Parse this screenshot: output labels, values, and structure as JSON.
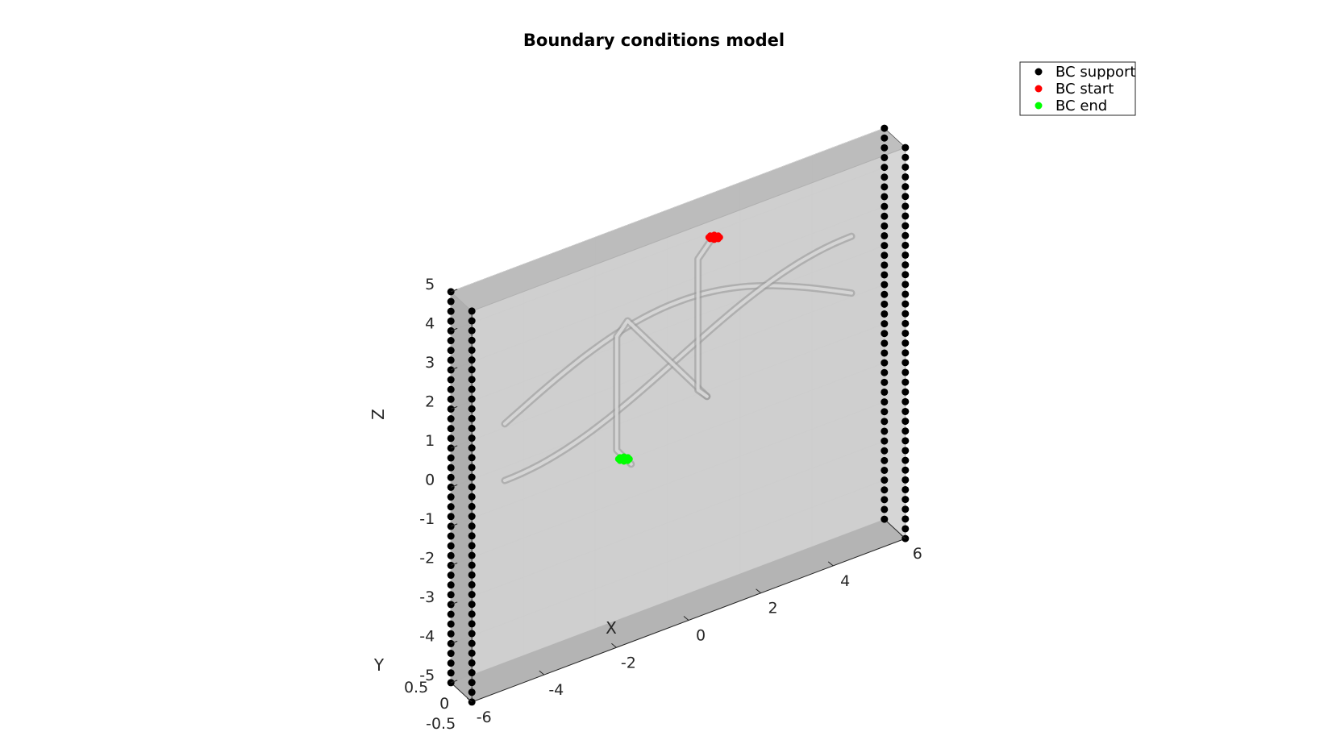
{
  "chart_data": {
    "type": "scatter3d",
    "title": "Boundary conditions model",
    "xlabel": "X",
    "ylabel": "Y",
    "zlabel": "Z",
    "xlim": [
      -6,
      6
    ],
    "ylim": [
      -0.5,
      0.5
    ],
    "zlim": [
      -5,
      5
    ],
    "xticks": [
      "-6",
      "-4",
      "-2",
      "0",
      "2",
      "4",
      "6"
    ],
    "yticks": [
      "-0.5",
      "0",
      "0.5"
    ],
    "zticks": [
      "-5",
      "-4",
      "-3",
      "-2",
      "-1",
      "0",
      "1",
      "2",
      "3",
      "4",
      "5"
    ],
    "grid": true,
    "legend_position": "top-right",
    "series": [
      {
        "name": "BC support",
        "color": "#000000",
        "point_sets": [
          {
            "x": -6,
            "y": -0.5,
            "z_from": -5,
            "z_to": 5,
            "count": 41
          },
          {
            "x": -6,
            "y": 0.5,
            "z_from": -5,
            "z_to": 5,
            "count": 41
          },
          {
            "x": 6,
            "y": -0.5,
            "z_from": -5,
            "z_to": 5,
            "count": 41
          },
          {
            "x": 6,
            "y": 0.5,
            "z_from": -5,
            "z_to": 5,
            "count": 41
          }
        ]
      },
      {
        "name": "BC start",
        "color": "#ff0000",
        "points": [
          {
            "x": 1,
            "y": 0,
            "z": 4.2
          }
        ]
      },
      {
        "name": "BC end",
        "color": "#00ff00",
        "points": [
          {
            "x": -1.5,
            "y": 0,
            "z": -0.6
          }
        ]
      }
    ],
    "model": {
      "color": "#cccccc",
      "description_visible": false
    }
  }
}
